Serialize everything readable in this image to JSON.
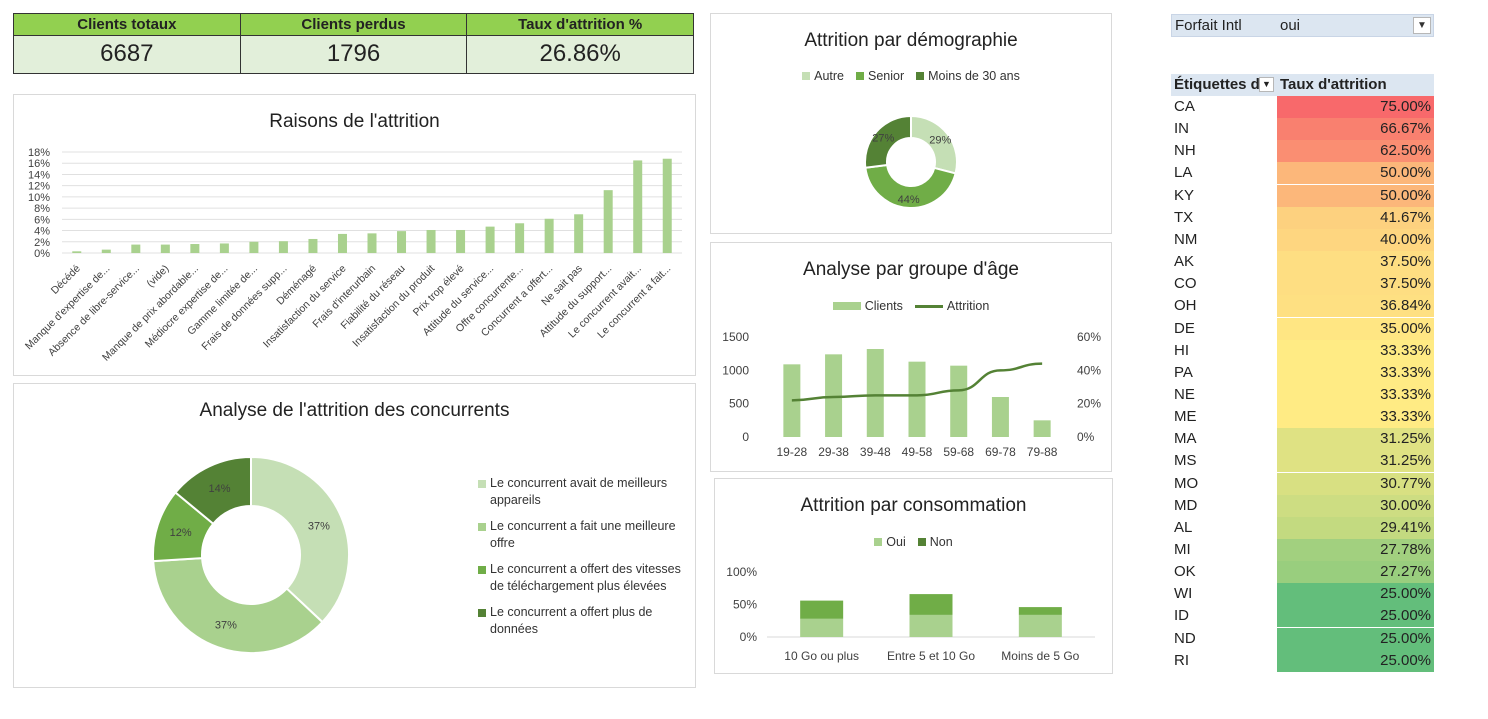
{
  "kpis": [
    {
      "label": "Clients totaux",
      "value": "6687"
    },
    {
      "label": "Clients perdus",
      "value": "1796"
    },
    {
      "label": "Taux d'attrition %",
      "value": "26.86%"
    }
  ],
  "colors": {
    "c1": "#c5dfb5",
    "c2": "#a9d18e",
    "c3": "#70ad47",
    "c4": "#548235",
    "header_green": "#92d050",
    "value_green": "#e2efda"
  },
  "reasons_chart": {
    "title": "Raisons de l'attrition",
    "chart_data": {
      "type": "bar",
      "categories": [
        "Décédé",
        "Manque d'expertise de...",
        "Absence de libre-service...",
        "(vide)",
        "Manque de prix abordable...",
        "Médiocre expertise de...",
        "Gamme limitée de...",
        "Frais de données supp...",
        "Déménagé",
        "Insatisfaction du service",
        "Frais d'interurbain",
        "Fiabilité du réseau",
        "Insatisfaction du produit",
        "Prix trop élevé",
        "Attitude du service...",
        "Offre concurrente...",
        "Concurrent a offert...",
        "Ne sait pas",
        "Attitude du support...",
        "Le concurrent avait...",
        "Le concurrent a fait..."
      ],
      "values": [
        0.3,
        0.6,
        1.5,
        1.5,
        1.6,
        1.7,
        2.0,
        2.1,
        2.5,
        3.4,
        3.5,
        3.9,
        4.1,
        4.1,
        4.7,
        5.3,
        6.1,
        6.9,
        11.2,
        16.5,
        16.8
      ],
      "yticks": [
        "0%",
        "2%",
        "4%",
        "6%",
        "8%",
        "10%",
        "12%",
        "14%",
        "16%",
        "18%"
      ],
      "ylim": [
        0,
        18
      ]
    }
  },
  "competitors_chart": {
    "title": "Analyse de l'attrition des concurrents",
    "chart_data": {
      "type": "pie",
      "labels": [
        "Le concurrent avait de meilleurs appareils",
        "Le concurrent a fait une meilleure offre",
        "Le concurrent a offert des vitesses de téléchargement plus élevées",
        "Le concurrent a offert plus de données"
      ],
      "values": [
        37,
        37,
        12,
        14
      ],
      "data_labels": [
        "37%",
        "37%",
        "12%",
        "14%"
      ]
    },
    "legend": [
      {
        "line1": "Le concurrent avait de meilleurs",
        "line2": "appareils"
      },
      {
        "line1": "Le concurrent a fait une meilleure",
        "line2": "offre"
      },
      {
        "line1": "Le concurrent a offert des vitesses",
        "line2": "de téléchargement plus élevées"
      },
      {
        "line1": "Le concurrent a offert plus de",
        "line2": "données"
      }
    ]
  },
  "demographics_chart": {
    "title": "Attrition par démographie",
    "chart_data": {
      "type": "pie",
      "labels": [
        "Autre",
        "Senior",
        "Moins de 30 ans"
      ],
      "values": [
        29,
        44,
        27
      ],
      "data_labels": [
        "29%",
        "44%",
        "27%"
      ]
    }
  },
  "age_chart": {
    "title": "Analyse par groupe d'âge",
    "legend": {
      "bars": "Clients",
      "line": "Attrition"
    },
    "chart_data": {
      "type": "bar",
      "categories": [
        "19-28",
        "29-38",
        "39-48",
        "49-58",
        "59-68",
        "69-78",
        "79-88"
      ],
      "series": [
        {
          "name": "Clients",
          "values": [
            1090,
            1240,
            1320,
            1130,
            1070,
            600,
            250
          ]
        },
        {
          "name": "Attrition",
          "values": [
            22,
            24,
            25,
            25,
            28,
            40,
            44
          ]
        }
      ],
      "y_left_ticks": [
        "0",
        "500",
        "1000",
        "1500"
      ],
      "y_right_ticks": [
        "0%",
        "20%",
        "40%",
        "60%"
      ],
      "ylim_left": [
        0,
        1500
      ],
      "ylim_right": [
        0,
        60
      ]
    }
  },
  "consumption_chart": {
    "title": "Attrition par consommation",
    "chart_data": {
      "type": "bar",
      "categories": [
        "10 Go ou plus",
        "Entre 5 et 10 Go",
        "Moins de 5 Go"
      ],
      "series": [
        {
          "name": "Oui",
          "values": [
            28,
            34,
            34
          ]
        },
        {
          "name": "Non",
          "values": [
            28,
            32,
            12
          ]
        }
      ],
      "yticks": [
        "0%",
        "50%",
        "100%"
      ],
      "ylim": [
        0,
        100
      ]
    }
  },
  "pivot": {
    "filter_label": "Forfait Intl",
    "filter_value": "oui",
    "col1_header": "Étiquettes d",
    "col2_header": "Taux d'attrition",
    "rows": [
      {
        "state": "CA",
        "rate": "75.00%",
        "color": "#f8696b"
      },
      {
        "state": "IN",
        "rate": "66.67%",
        "color": "#f9806f"
      },
      {
        "state": "NH",
        "rate": "62.50%",
        "color": "#fa8e72"
      },
      {
        "state": "LA",
        "rate": "50.00%",
        "color": "#fcb77a"
      },
      {
        "state": "KY",
        "rate": "50.00%",
        "color": "#fcb77a"
      },
      {
        "state": "TX",
        "rate": "41.67%",
        "color": "#fdd17f"
      },
      {
        "state": "NM",
        "rate": "40.00%",
        "color": "#fed680"
      },
      {
        "state": "AK",
        "rate": "37.50%",
        "color": "#fede82"
      },
      {
        "state": "CO",
        "rate": "37.50%",
        "color": "#fede82"
      },
      {
        "state": "OH",
        "rate": "36.84%",
        "color": "#fee082"
      },
      {
        "state": "DE",
        "rate": "35.00%",
        "color": "#ffe683"
      },
      {
        "state": "HI",
        "rate": "33.33%",
        "color": "#ffeb84"
      },
      {
        "state": "PA",
        "rate": "33.33%",
        "color": "#ffeb84"
      },
      {
        "state": "NE",
        "rate": "33.33%",
        "color": "#ffeb84"
      },
      {
        "state": "ME",
        "rate": "33.33%",
        "color": "#ffeb84"
      },
      {
        "state": "MA",
        "rate": "31.25%",
        "color": "#dfe283"
      },
      {
        "state": "MS",
        "rate": "31.25%",
        "color": "#dfe283"
      },
      {
        "state": "MO",
        "rate": "30.77%",
        "color": "#d8e082"
      },
      {
        "state": "MD",
        "rate": "30.00%",
        "color": "#cddd82"
      },
      {
        "state": "AL",
        "rate": "29.41%",
        "color": "#c3da80"
      },
      {
        "state": "MI",
        "rate": "27.78%",
        "color": "#a2d07f"
      },
      {
        "state": "OK",
        "rate": "27.27%",
        "color": "#99ce7e"
      },
      {
        "state": "WI",
        "rate": "25.00%",
        "color": "#63be7b"
      },
      {
        "state": "ID",
        "rate": "25.00%",
        "color": "#63be7b"
      },
      {
        "state": "ND",
        "rate": "25.00%",
        "color": "#63be7b"
      },
      {
        "state": "RI",
        "rate": "25.00%",
        "color": "#63be7b"
      }
    ]
  }
}
